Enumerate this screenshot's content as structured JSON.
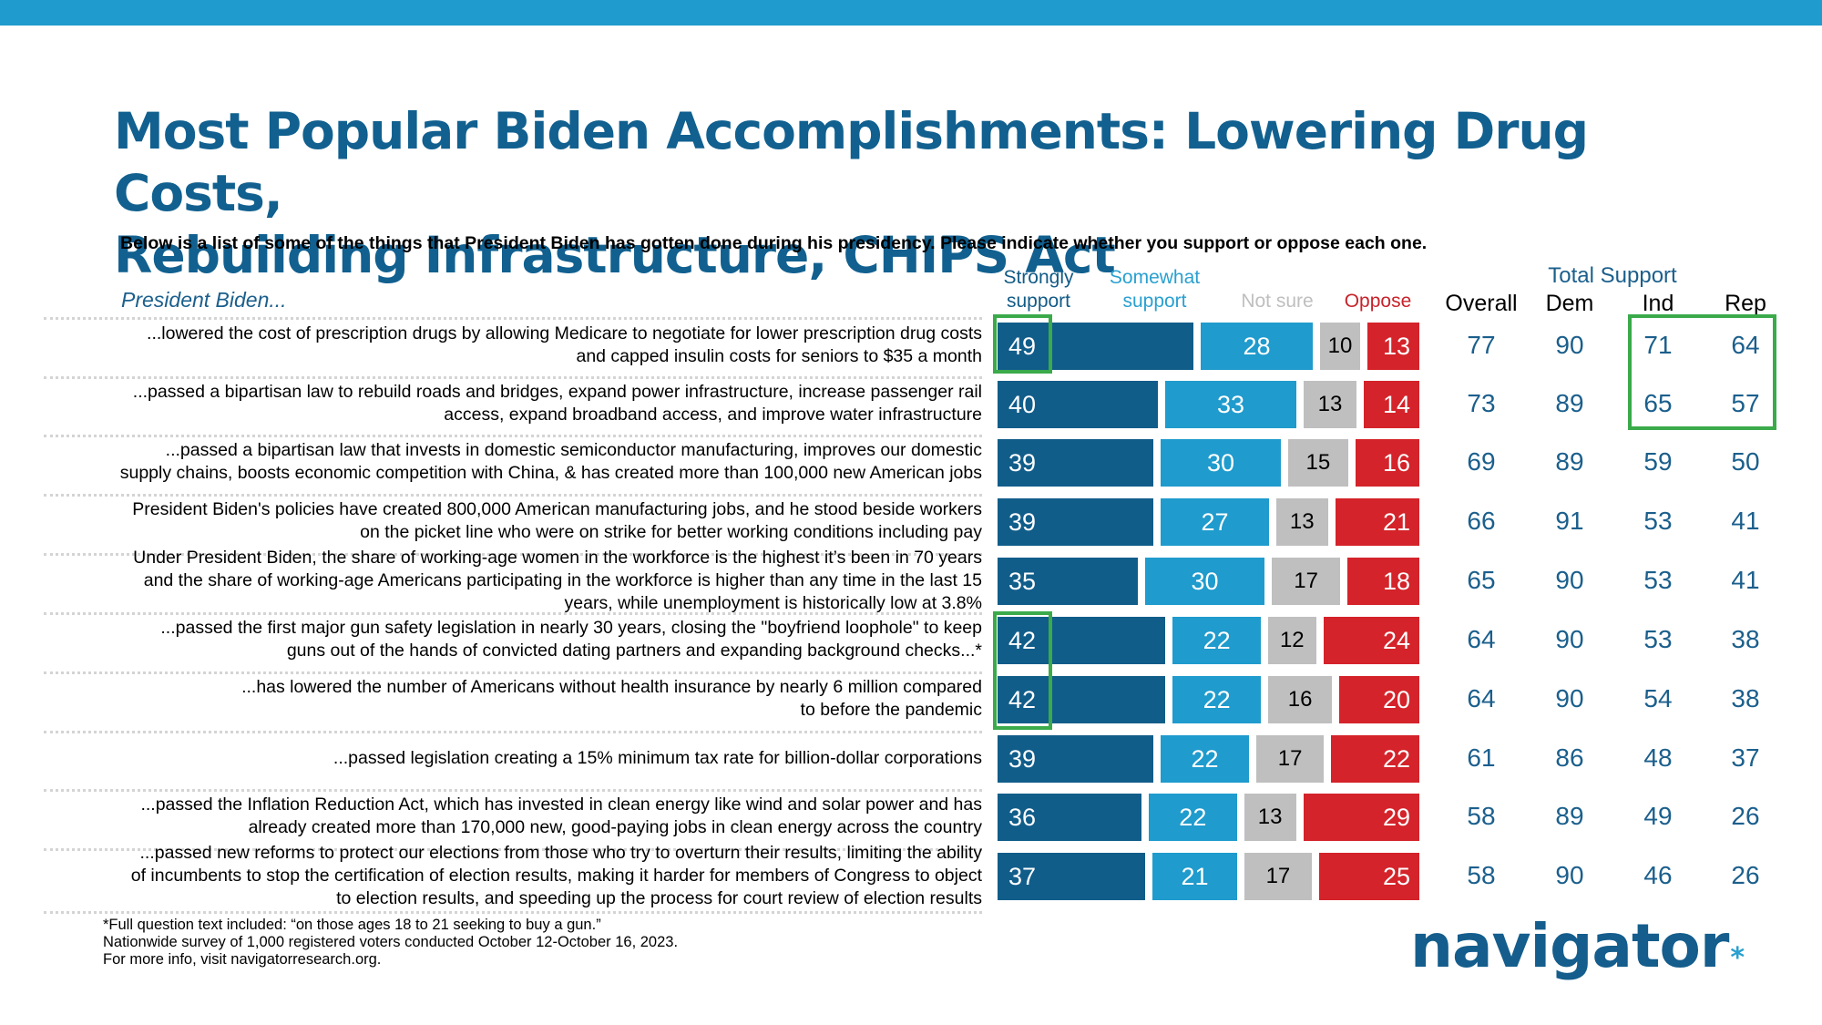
{
  "header": {
    "title_line1": "Most Popular Biden Accomplishments: Lowering Drug Costs,",
    "title_line2": "Rebuilding Infrastructure, CHIPS Act",
    "subtitle": "Below is a list of some of the things that President Biden has gotten done during his presidency. Please indicate whether you support or oppose each one.",
    "lead_label": "President Biden..."
  },
  "columns": {
    "strongly_line1": "Strongly",
    "strongly_line2": "support",
    "somewhat_line1": "Somewhat",
    "somewhat_line2": "support",
    "not_sure": "Not sure",
    "oppose": "Oppose",
    "total_support": "Total Support",
    "overall": "Overall",
    "dem": "Dem",
    "ind": "Ind",
    "rep": "Rep"
  },
  "colors": {
    "strongly": "#115d8a",
    "somewhat": "#1f9bcd",
    "not_sure": "#bfbfbf",
    "oppose": "#d4232a",
    "highlight": "#3aaa4a",
    "top_bar": "#1f9bcd"
  },
  "chart_data": {
    "type": "bar",
    "stacked": true,
    "orientation": "horizontal",
    "title": "Most Popular Biden Accomplishments: Lowering Drug Costs, Rebuilding Infrastructure, CHIPS Act",
    "subtitle": "Below is a list of some of the things that President Biden has gotten done during his presidency. Please indicate whether you support or oppose each one.",
    "categories": [
      [
        "...lowered the cost of prescription drugs by allowing Medicare to negotiate for lower prescription drug costs",
        "and capped insulin costs for seniors to $35 a month"
      ],
      [
        "...passed a bipartisan law to rebuild roads and bridges, expand power infrastructure, increase passenger rail",
        "access, expand broadband access, and improve water infrastructure"
      ],
      [
        "...passed a bipartisan law that invests in domestic semiconductor manufacturing, improves our domestic",
        "supply chains, boosts economic competition with China, & has created more than 100,000 new American jobs"
      ],
      [
        "President Biden's policies have created 800,000 American manufacturing jobs, and he stood beside workers",
        "on the picket line who were on strike for better working conditions including pay"
      ],
      [
        "Under President Biden, the share of working-age women in the workforce is the highest it’s been in 70 years",
        "and the share of working-age Americans participating in the workforce is higher than any time in the last 15",
        "years, while unemployment is historically low at 3.8%"
      ],
      [
        "...passed the first major gun safety legislation in nearly 30 years, closing the \"boyfriend loophole\" to keep",
        "guns out of the hands of convicted dating partners and expanding background checks...*"
      ],
      [
        "...has lowered the number of Americans without health insurance by nearly 6 million compared",
        "to before the pandemic"
      ],
      [
        "...passed legislation creating a 15% minimum tax rate for billion-dollar corporations"
      ],
      [
        "...passed the Inflation Reduction Act, which has invested in clean energy like wind and solar power and has",
        "already created more than 170,000 new, good-paying jobs in clean energy across the country"
      ],
      [
        "...passed new reforms to protect our elections from those who try to overturn their results, limiting the ability",
        "of incumbents to stop the certification of election results, making it harder for members of Congress to object",
        "to election results, and speeding up the process for court review of election results"
      ]
    ],
    "series": [
      {
        "name": "Strongly support",
        "values": [
          49,
          40,
          39,
          39,
          35,
          42,
          42,
          39,
          36,
          37
        ]
      },
      {
        "name": "Somewhat support",
        "values": [
          28,
          33,
          30,
          27,
          30,
          22,
          22,
          22,
          22,
          21
        ]
      },
      {
        "name": "Not sure",
        "values": [
          10,
          13,
          15,
          13,
          17,
          12,
          16,
          17,
          13,
          17
        ]
      },
      {
        "name": "Oppose",
        "values": [
          13,
          14,
          16,
          21,
          18,
          24,
          20,
          22,
          29,
          25
        ]
      }
    ],
    "total_support": {
      "title": "Total Support",
      "Overall": [
        77,
        73,
        69,
        66,
        65,
        64,
        64,
        61,
        58,
        58
      ],
      "Dem": [
        90,
        89,
        89,
        91,
        90,
        90,
        90,
        86,
        89,
        90
      ],
      "Ind": [
        71,
        65,
        59,
        53,
        53,
        53,
        54,
        48,
        49,
        46
      ],
      "Rep": [
        64,
        57,
        50,
        41,
        41,
        38,
        38,
        37,
        26,
        26
      ]
    },
    "highlights": [
      {
        "series": "Strongly support",
        "rows": [
          0
        ]
      },
      {
        "series": "Strongly support",
        "rows": [
          5,
          6
        ]
      },
      {
        "series": "Ind/Rep total support",
        "rows": [
          0,
          1
        ]
      }
    ],
    "xlim": [
      0,
      100
    ],
    "legend": "top"
  },
  "footer": {
    "line1": "*Full question text included: “on those ages 18 to 21 seeking to buy a gun.”",
    "line2": "Nationwide survey of 1,000 registered voters conducted October 12-October 16, 2023.",
    "line3": "For more info, visit navigatorresearch.org."
  },
  "logo": {
    "text": "navigator",
    "mark": "*"
  }
}
